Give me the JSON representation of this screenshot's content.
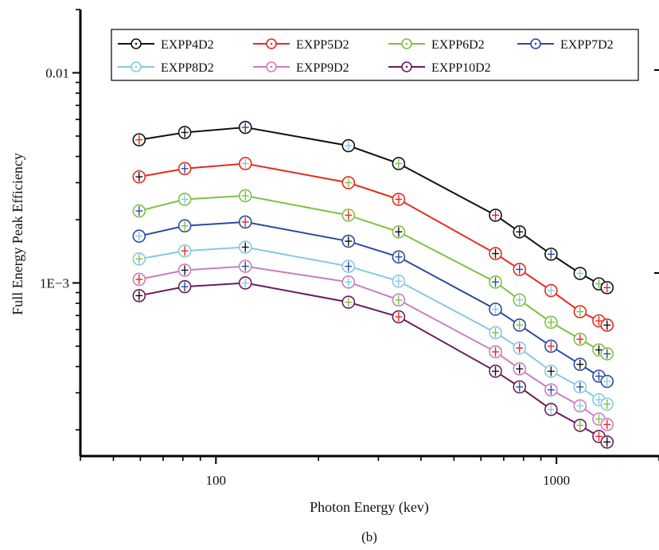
{
  "chart_data": {
    "type": "line",
    "xlabel": "Photon Energy (kev)",
    "ylabel": "Full Energy Peak Efficiency",
    "caption": "(b)",
    "x_scale": "log",
    "y_scale": "log",
    "xlim": [
      40,
      2000
    ],
    "ylim": [
      0.00015,
      0.02
    ],
    "x_ticks": [
      {
        "value": 100,
        "label": "100"
      },
      {
        "value": 1000,
        "label": "1000"
      }
    ],
    "y_ticks": [
      {
        "value": 0.01,
        "label": "0.01"
      },
      {
        "value": 0.001,
        "label": "1E−3"
      }
    ],
    "legend_position": "top",
    "grid": false,
    "x": [
      59.5,
      81,
      122,
      245,
      344,
      662,
      779,
      964,
      1173,
      1332,
      1408
    ],
    "series": [
      {
        "name": "EXPP4D2",
        "color": "#111111",
        "values": [
          0.0048,
          0.0052,
          0.0055,
          0.0045,
          0.0037,
          0.0021,
          0.00175,
          0.00137,
          0.00111,
          0.00099,
          0.00095
        ]
      },
      {
        "name": "EXPP5D2",
        "color": "#e8281e",
        "values": [
          0.0032,
          0.0035,
          0.0037,
          0.003,
          0.0025,
          0.00138,
          0.00116,
          0.00092,
          0.00073,
          0.00066,
          0.00063
        ]
      },
      {
        "name": "EXPP6D2",
        "color": "#7cc242",
        "values": [
          0.0022,
          0.0025,
          0.0026,
          0.0021,
          0.00175,
          0.00101,
          0.00083,
          0.00065,
          0.00054,
          0.00048,
          0.00046
        ]
      },
      {
        "name": "EXPP7D2",
        "color": "#2b4a9e",
        "values": [
          0.00167,
          0.00187,
          0.00195,
          0.00158,
          0.00133,
          0.00075,
          0.00063,
          0.0005,
          0.00041,
          0.00036,
          0.00034
        ]
      },
      {
        "name": "EXPP8D2",
        "color": "#86c9e0",
        "values": [
          0.0013,
          0.00142,
          0.00148,
          0.0012,
          0.00102,
          0.00058,
          0.00049,
          0.00038,
          0.00032,
          0.000278,
          0.000265
        ]
      },
      {
        "name": "EXPP9D2",
        "color": "#c77fbf",
        "values": [
          0.00104,
          0.00115,
          0.0012,
          0.00101,
          0.00083,
          0.00047,
          0.00039,
          0.00031,
          0.00026,
          0.000225,
          0.000212
        ]
      },
      {
        "name": "EXPP10D2",
        "color": "#6b1a5e",
        "values": [
          0.00087,
          0.00096,
          0.001,
          0.00081,
          0.00069,
          0.00038,
          0.00032,
          0.00025,
          0.00021,
          0.000186,
          0.000175
        ]
      }
    ]
  }
}
